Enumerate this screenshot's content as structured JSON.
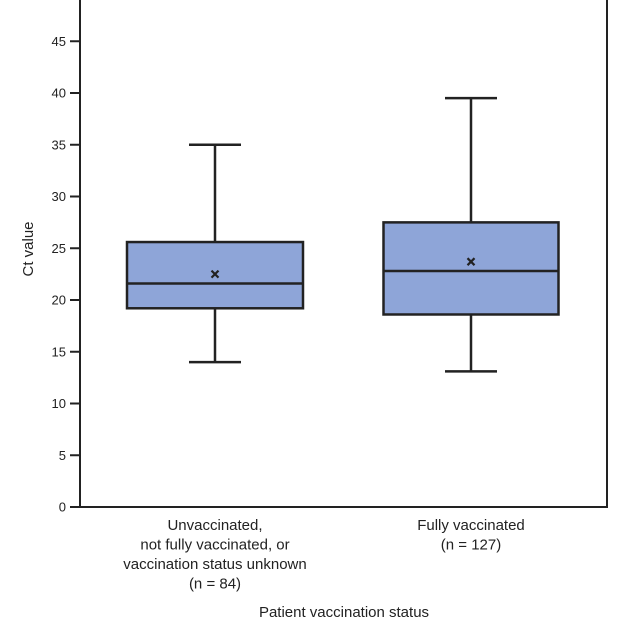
{
  "chart_data": {
    "type": "box",
    "xlabel": "Patient vaccination status",
    "ylabel": "Ct value",
    "ylim": [
      0,
      48
    ],
    "yticks": [
      0,
      5,
      10,
      15,
      20,
      25,
      30,
      35,
      40,
      45
    ],
    "box_color": "#8ea5d8",
    "categories": [
      {
        "label_lines": [
          "Unvaccinated,",
          "not fully vaccinated, or",
          "vaccination status unknown",
          "(n = 84)"
        ],
        "min": 14.0,
        "q1": 19.2,
        "median": 21.6,
        "q3": 25.6,
        "max": 35.0,
        "mean": 22.5
      },
      {
        "label_lines": [
          "Fully vaccinated",
          "(n = 127)"
        ],
        "min": 13.1,
        "q1": 18.6,
        "median": 22.8,
        "q3": 27.5,
        "max": 39.5,
        "mean": 23.7
      }
    ]
  }
}
